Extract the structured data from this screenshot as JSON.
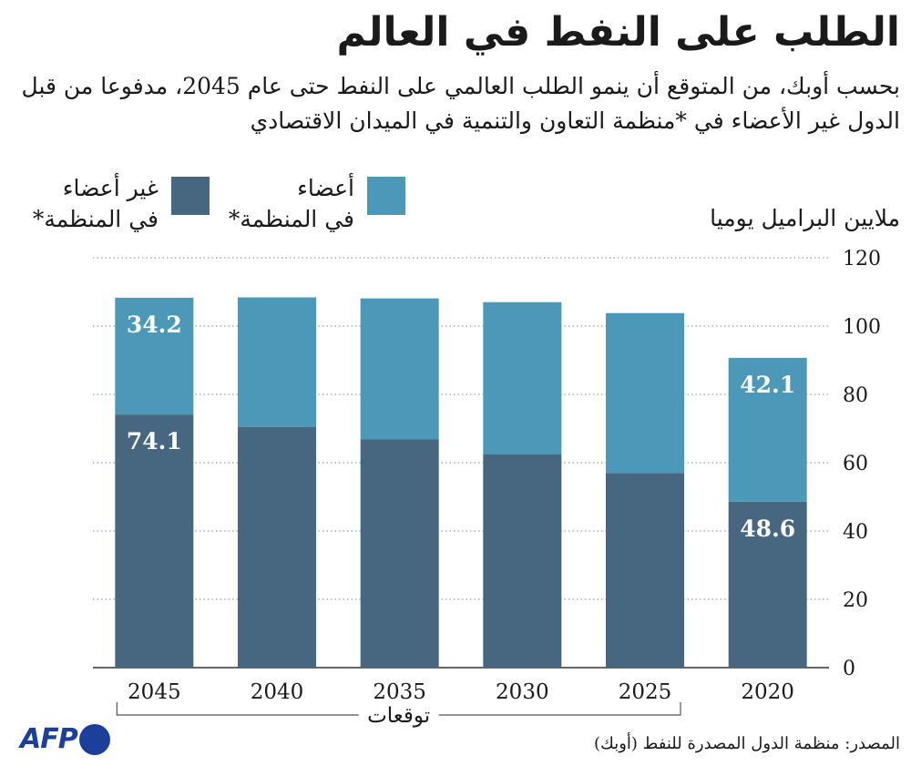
{
  "title": "الطلب على النفط في العالم",
  "subtitle": "بحسب أوبك، من المتوقع  أن ينمو الطلب العالمي على النفط حتى عام 2045، مدفوعا من قبل الدول غير الأعضاء في *منظمة التعاون والتنمية في الميدان الاقتصادي",
  "legend": [
    {
      "label": "أعضاء\nفي المنظمة*",
      "color": "#4b98b8"
    },
    {
      "label": "غير أعضاء\nفي المنظمة*",
      "color": "#46677f"
    }
  ],
  "unit_label": "ملايين البراميل يوميا",
  "projection_label": "توقعات",
  "source": "المصدر: منظمة الدول المصدرة للنفط (أوبك)",
  "logo": {
    "text": "AFP",
    "color": "#1b3f9a"
  },
  "chart_data": {
    "type": "bar",
    "stacked": true,
    "categories": [
      "2045",
      "2040",
      "2035",
      "2030",
      "2025",
      "2020"
    ],
    "series": [
      {
        "name": "غير أعضاء في المنظمة*",
        "color": "#46677f",
        "values": [
          74.1,
          70.5,
          66.8,
          62.5,
          57.0,
          48.6
        ]
      },
      {
        "name": "أعضاء في المنظمة*",
        "color": "#4b98b8",
        "values": [
          34.2,
          37.9,
          41.3,
          44.5,
          46.8,
          42.1
        ]
      }
    ],
    "data_labels": [
      {
        "category": "2045",
        "series": 0,
        "text": "74.1"
      },
      {
        "category": "2045",
        "series": 1,
        "text": "34.2"
      },
      {
        "category": "2020",
        "series": 0,
        "text": "48.6"
      },
      {
        "category": "2020",
        "series": 1,
        "text": "42.1"
      }
    ],
    "yticks": [
      0,
      20,
      40,
      60,
      80,
      100,
      120
    ],
    "ylim": [
      0,
      120
    ],
    "ylabel": "ملايين البراميل يوميا",
    "grid": true,
    "y_axis_position": "right",
    "legend_position": "top"
  }
}
